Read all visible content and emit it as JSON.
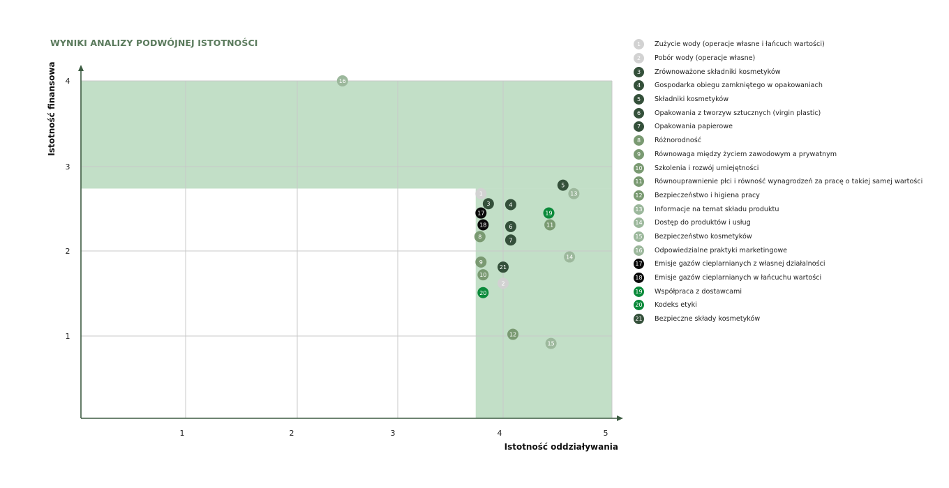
{
  "colors": {
    "title": "#5a7a5c",
    "axis": "#3d5c42",
    "shade": "#c2dfc7",
    "grid": "#c8c8c8",
    "light_gray": "#d2d2d2",
    "dark_green": "#34503a",
    "mid_green": "#7a9a72",
    "pale_green": "#9cb89c",
    "black": "#0a0a0a",
    "bright_green": "#0a8a3a"
  },
  "chart_data": {
    "type": "scatter",
    "title": "WYNIKI ANALIZY PODWÓJNEJ ISTOTNOŚCI",
    "xlabel": "Istotność oddziaływania",
    "ylabel": "Istotność finansowa",
    "xlim": [
      0,
      5
    ],
    "ylim": [
      0,
      4
    ],
    "x_ticks": [
      "1",
      "2",
      "3",
      "4",
      "5"
    ],
    "y_ticks": [
      "1",
      "2",
      "3",
      "4"
    ],
    "grid": true,
    "legend_position": "right",
    "materiality_threshold": {
      "x": 3.74,
      "y": 2.74
    },
    "points": [
      {
        "id": "1",
        "label": "Zużycie wody (operacje własne i łańcuch wartości)",
        "x": 3.79,
        "y": 2.68,
        "color": "#d2d2d2"
      },
      {
        "id": "2",
        "label": "Pobór wody (operacje własne)",
        "x": 4.0,
        "y": 1.62,
        "color": "#d2d2d2"
      },
      {
        "id": "3",
        "label": "Zrównoważone składniki kosmetyków",
        "x": 3.86,
        "y": 2.56,
        "color": "#34503a"
      },
      {
        "id": "4",
        "label": "Gospodarka obiegu zamkniętego w opakowaniach",
        "x": 4.07,
        "y": 2.55,
        "color": "#34503a"
      },
      {
        "id": "5",
        "label": "Składniki kosmetyków",
        "x": 4.55,
        "y": 2.78,
        "color": "#34503a"
      },
      {
        "id": "6",
        "label": "Opakowania z tworzyw sztucznych (virgin plastic)",
        "x": 4.07,
        "y": 2.29,
        "color": "#34503a"
      },
      {
        "id": "7",
        "label": "Opakowania papierowe",
        "x": 4.07,
        "y": 2.13,
        "color": "#34503a"
      },
      {
        "id": "8",
        "label": "Różnorodność",
        "x": 3.78,
        "y": 2.17,
        "color": "#7a9a72"
      },
      {
        "id": "9",
        "label": "Równowaga między życiem zawodowym a prywatnym",
        "x": 3.79,
        "y": 1.87,
        "color": "#7a9a72"
      },
      {
        "id": "10",
        "label": "Szkolenia i rozwój umiejętności",
        "x": 3.81,
        "y": 1.72,
        "color": "#7a9a72"
      },
      {
        "id": "11",
        "label": "Równouprawnienie płci i równość wynagrodzeń za pracę o takiej samej wartości",
        "x": 4.43,
        "y": 2.31,
        "color": "#7a9a72"
      },
      {
        "id": "12",
        "label": "Bezpieczeństwo i higiena pracy",
        "x": 4.09,
        "y": 1.02,
        "color": "#7a9a72"
      },
      {
        "id": "13",
        "label": "Informacje na temat składu produktu",
        "x": 4.65,
        "y": 2.68,
        "color": "#9cb89c"
      },
      {
        "id": "14",
        "label": "Dostęp do produktów i usług",
        "x": 4.61,
        "y": 1.93,
        "color": "#9cb89c"
      },
      {
        "id": "15",
        "label": "Bezpieczeństwo kosmetyków",
        "x": 4.44,
        "y": 0.91,
        "color": "#9cb89c"
      },
      {
        "id": "16",
        "label": "Odpowiedzialne praktyki marketingowe",
        "x": 2.45,
        "y": 4.0,
        "color": "#9cb89c"
      },
      {
        "id": "17",
        "label": "Emisje gazów cieplarnianych z własnej działalności",
        "x": 3.79,
        "y": 2.45,
        "color": "#0a0a0a"
      },
      {
        "id": "18",
        "label": "Emisje gazów cieplarnianych w łańcuchu wartości",
        "x": 3.81,
        "y": 2.31,
        "color": "#0a0a0a"
      },
      {
        "id": "19",
        "label": "Współpraca z dostawcami",
        "x": 4.42,
        "y": 2.45,
        "color": "#0a8a3a"
      },
      {
        "id": "20",
        "label": "Kodeks etyki",
        "x": 3.81,
        "y": 1.51,
        "color": "#0a8a3a"
      },
      {
        "id": "21",
        "label": "Bezpieczne składy kosmetyków",
        "x": 4.0,
        "y": 1.81,
        "color": "#34503a"
      }
    ]
  }
}
